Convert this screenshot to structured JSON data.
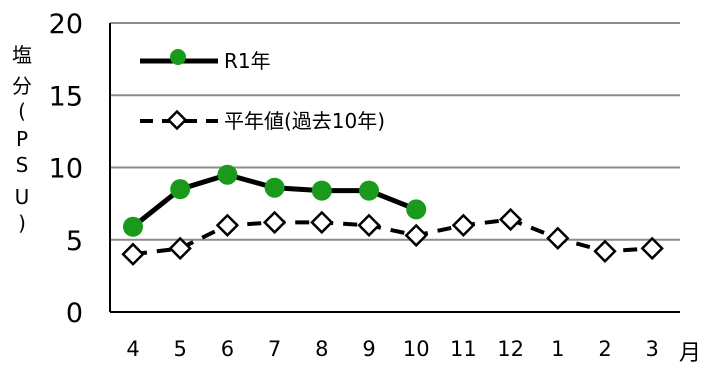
{
  "chart_data": {
    "type": "line",
    "title": "",
    "ylabel_chars": [
      "塩",
      "分",
      "(",
      "P",
      "S",
      "U",
      ")"
    ],
    "xunit": "月",
    "categories": [
      "4",
      "5",
      "6",
      "7",
      "8",
      "9",
      "10",
      "11",
      "12",
      "1",
      "2",
      "3"
    ],
    "ylim": [
      0,
      20
    ],
    "yticks": [
      0,
      5,
      10,
      15,
      20
    ],
    "grid": true,
    "legend_placement": "top-left",
    "series": [
      {
        "name": "R1年",
        "style": "solid",
        "marker": "filled-circle",
        "color": "#000000",
        "marker_color": "#1a9a1a",
        "values": [
          5.9,
          8.5,
          9.5,
          8.6,
          8.4,
          8.4,
          7.1,
          null,
          null,
          null,
          null,
          null
        ]
      },
      {
        "name": "平年値(過去10年)",
        "style": "dashed",
        "marker": "open-diamond",
        "color": "#000000",
        "values": [
          4.0,
          4.4,
          6.0,
          6.2,
          6.2,
          6.0,
          5.3,
          6.0,
          6.4,
          5.1,
          4.2,
          4.4
        ]
      }
    ]
  }
}
